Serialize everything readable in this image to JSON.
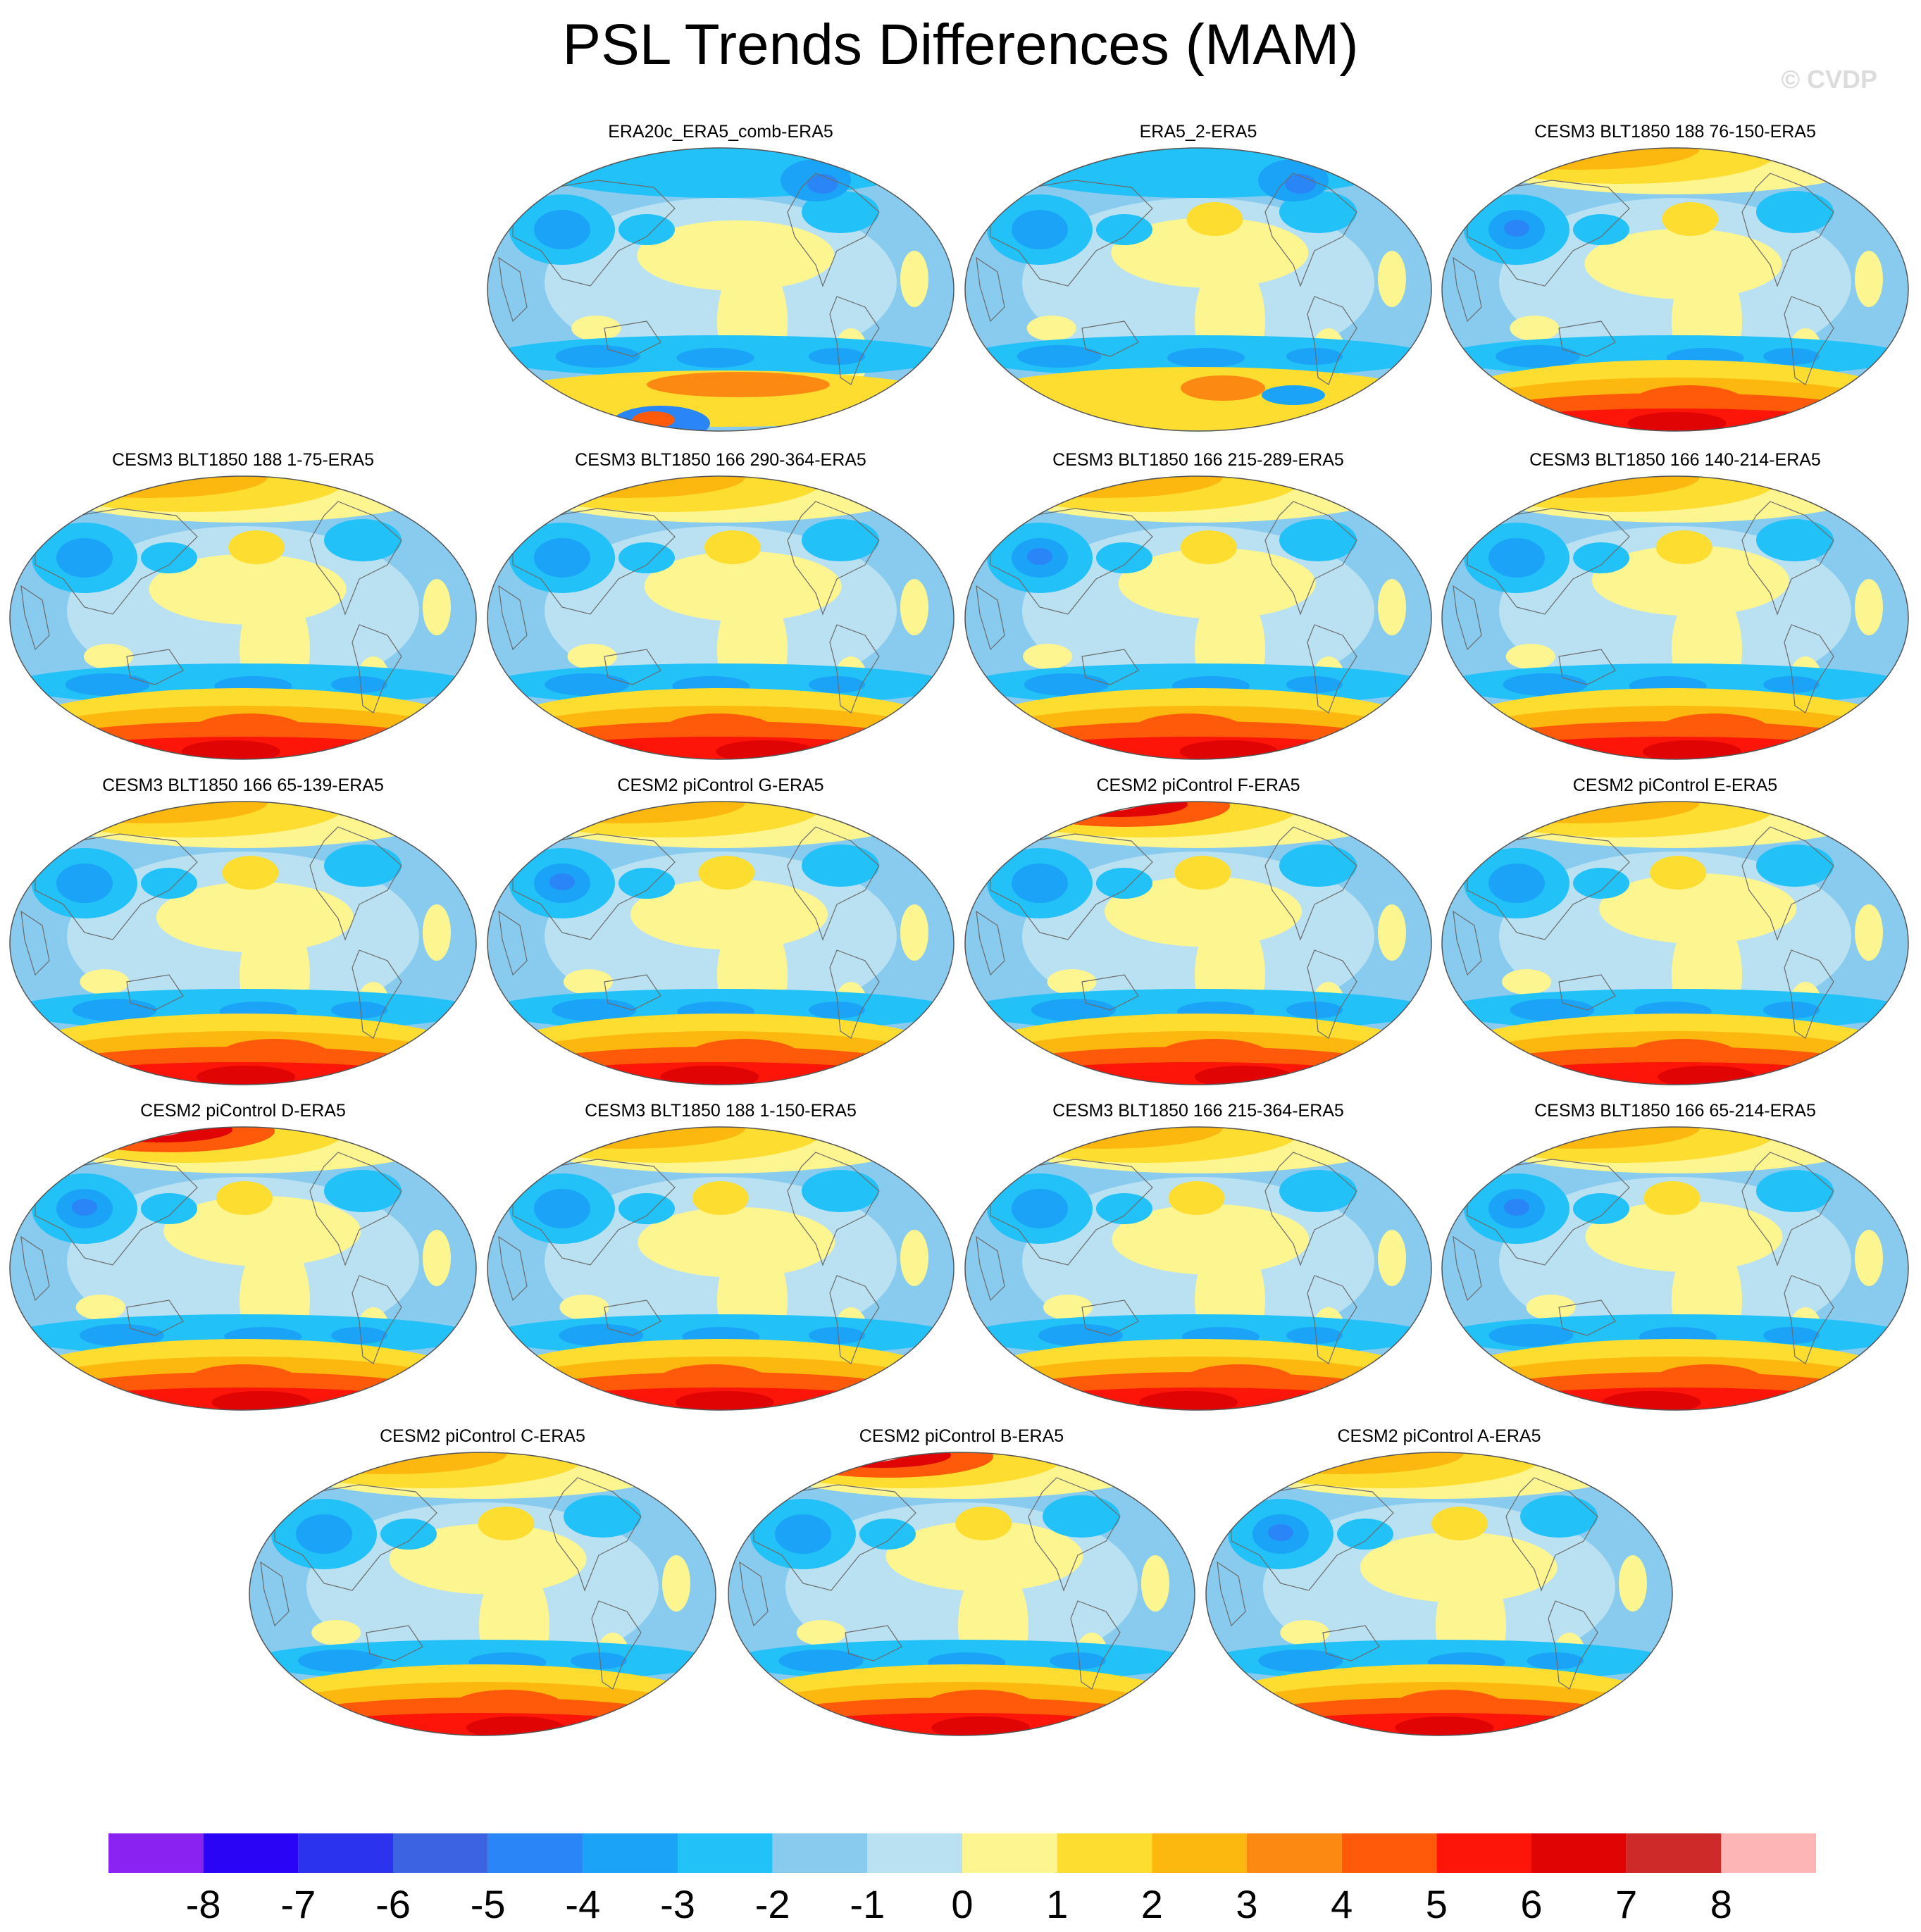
{
  "title": "PSL Trends Differences (MAM)",
  "watermark": "© CVDP",
  "panels": [
    {
      "label": "ERA20c_ERA5_comb-ERA5",
      "arctic": "neg",
      "antarctic": "mixed",
      "seed": 1
    },
    {
      "label": "ERA5_2-ERA5",
      "arctic": "neg",
      "antarctic": "mid",
      "seed": 2
    },
    {
      "label": "CESM3 BLT1850 188 76-150-ERA5",
      "arctic": "pos",
      "antarctic": "strong",
      "seed": 3
    },
    {
      "label": "CESM3 BLT1850 188 1-75-ERA5",
      "arctic": "pos",
      "antarctic": "strong",
      "seed": 4
    },
    {
      "label": "CESM3 BLT1850 166 290-364-ERA5",
      "arctic": "pos",
      "antarctic": "strong",
      "seed": 5
    },
    {
      "label": "CESM3 BLT1850 166 215-289-ERA5",
      "arctic": "pos",
      "antarctic": "strong",
      "seed": 6
    },
    {
      "label": "CESM3 BLT1850 166 140-214-ERA5",
      "arctic": "pos",
      "antarctic": "strong",
      "seed": 7
    },
    {
      "label": "CESM3 BLT1850 166 65-139-ERA5",
      "arctic": "pos",
      "antarctic": "strong",
      "seed": 8
    },
    {
      "label": "CESM2 piControl G-ERA5",
      "arctic": "pos",
      "antarctic": "strong",
      "seed": 9
    },
    {
      "label": "CESM2 piControl F-ERA5",
      "arctic": "strongpos",
      "antarctic": "strong",
      "seed": 10
    },
    {
      "label": "CESM2 piControl E-ERA5",
      "arctic": "pos",
      "antarctic": "strong",
      "seed": 11
    },
    {
      "label": "CESM2 piControl D-ERA5",
      "arctic": "strongpos",
      "antarctic": "strong",
      "seed": 12
    },
    {
      "label": "CESM3 BLT1850 188 1-150-ERA5",
      "arctic": "pos",
      "antarctic": "strong",
      "seed": 13
    },
    {
      "label": "CESM3 BLT1850 166 215-364-ERA5",
      "arctic": "pos",
      "antarctic": "strong",
      "seed": 14
    },
    {
      "label": "CESM3 BLT1850 166 65-214-ERA5",
      "arctic": "pos",
      "antarctic": "strong",
      "seed": 15
    },
    {
      "label": "CESM2 piControl C-ERA5",
      "arctic": "pos",
      "antarctic": "strong",
      "seed": 16
    },
    {
      "label": "CESM2 piControl B-ERA5",
      "arctic": "strongpos",
      "antarctic": "strong",
      "seed": 17
    },
    {
      "label": "CESM2 piControl A-ERA5",
      "arctic": "pos",
      "antarctic": "strong",
      "seed": 18
    }
  ],
  "colorbar": {
    "colors": [
      "#8a22f2",
      "#2a05f5",
      "#2b33ee",
      "#3c64e2",
      "#2a85f7",
      "#1aa3f7",
      "#22c1f7",
      "#88cbef",
      "#b9e1f2",
      "#fdf590",
      "#fedd31",
      "#fdb80f",
      "#fc8a12",
      "#fe5a0a",
      "#fc1508",
      "#e10404",
      "#cf2a2a",
      "#fdb5b5"
    ],
    "labels": [
      "-8",
      "-7",
      "-6",
      "-5",
      "-4",
      "-3",
      "-2",
      "-1",
      "0",
      "1",
      "2",
      "3",
      "4",
      "5",
      "6",
      "7",
      "8"
    ]
  }
}
